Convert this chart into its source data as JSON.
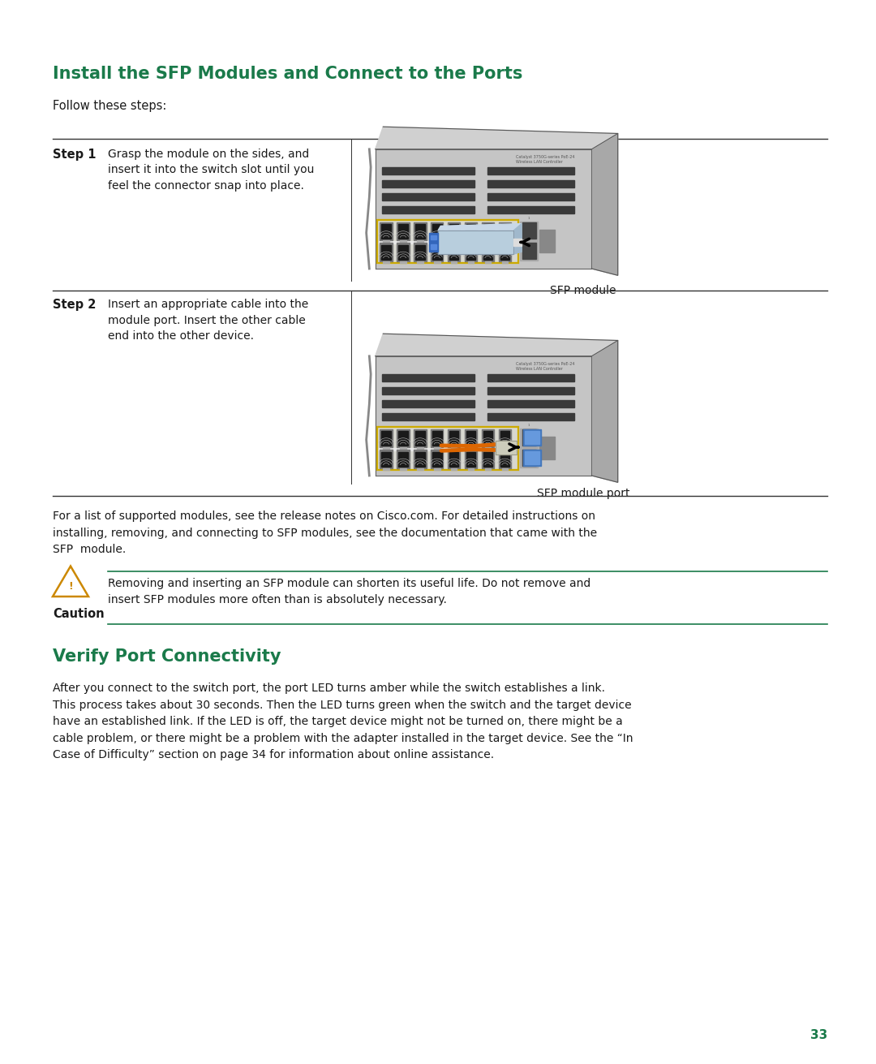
{
  "title": "Install the SFP Modules and Connect to the Ports",
  "title_color": "#1a7a4a",
  "title_fontsize": 15,
  "follow_text": "Follow these steps:",
  "step1_label": "Step 1",
  "step1_text": "Grasp the module on the sides, and\ninsert it into the switch slot until you\nfeel the connector snap into place.",
  "step1_caption": "SFP module",
  "step2_label": "Step 2",
  "step2_text": "Insert an appropriate cable into the\nmodule port. Insert the other cable\nend into the other device.",
  "step2_caption": "SFP module port",
  "body_text": "For a list of supported modules, see the release notes on Cisco.com. For detailed instructions on\ninstalling, removing, and connecting to SFP modules, see the documentation that came with the\nSFP  module.",
  "caution_label": "Caution",
  "caution_text": "Removing and inserting an SFP module can shorten its useful life. Do not remove and\ninsert SFP modules more often than is absolutely necessary.",
  "section2_title": "Verify Port Connectivity",
  "section2_color": "#1a7a4a",
  "section2_fontsize": 15,
  "section2_text": "After you connect to the switch port, the port LED turns amber while the switch establishes a link.\nThis process takes about 30 seconds. Then the LED turns green when the switch and the target device\nhave an established link. If the LED is off, the target device might not be turned on, there might be a\ncable problem, or there might be a problem with the adapter installed in the target device. See the “In\nCase of Difficulty” section on page 34 for information about online assistance.",
  "page_number": "33",
  "bg_color": "#ffffff",
  "text_color": "#1a1a1a",
  "line_color": "#333333",
  "green_color": "#1a7a4a"
}
